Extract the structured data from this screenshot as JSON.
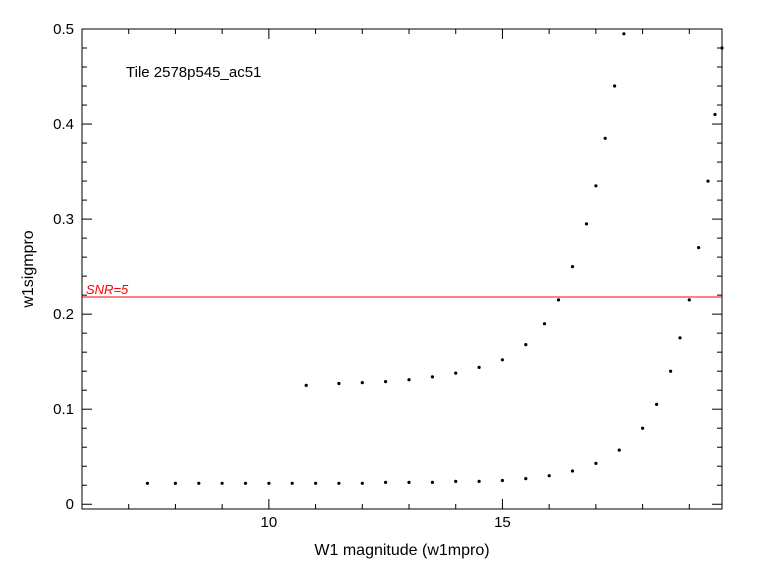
{
  "chart_data": {
    "type": "scatter",
    "title": "Tile 2578p545_ac51",
    "xlabel": "W1 magnitude (w1mpro)",
    "ylabel": "w1sigmpro",
    "xlim": [
      6.0,
      19.7
    ],
    "ylim": [
      -0.005,
      0.5
    ],
    "xticks_major": [
      10,
      15
    ],
    "xticks_minor_step": 1,
    "yticks_major": [
      0,
      0.1,
      0.2,
      0.3,
      0.4,
      0.5
    ],
    "ytick_labels": [
      "0",
      "0.1",
      "0.2",
      "0.3",
      "0.4",
      "0.5"
    ],
    "xtick_labels": [
      "10",
      "15"
    ],
    "yticks_minor_step": 0.02,
    "grid": false,
    "legend": "none",
    "series": [
      {
        "kind": "points",
        "color": "#000000",
        "description_of_locus": "primary sequence",
        "points": [
          [
            7.4,
            0.022
          ],
          [
            8.0,
            0.022
          ],
          [
            8.5,
            0.022
          ],
          [
            9.0,
            0.022
          ],
          [
            9.5,
            0.022
          ],
          [
            10.0,
            0.022
          ],
          [
            10.5,
            0.022
          ],
          [
            11.0,
            0.022
          ],
          [
            11.5,
            0.022
          ],
          [
            12.0,
            0.022
          ],
          [
            12.5,
            0.023
          ],
          [
            13.0,
            0.023
          ],
          [
            13.5,
            0.023
          ],
          [
            14.0,
            0.024
          ],
          [
            14.5,
            0.024
          ],
          [
            15.0,
            0.025
          ],
          [
            15.5,
            0.027
          ],
          [
            16.0,
            0.03
          ],
          [
            16.5,
            0.035
          ],
          [
            17.0,
            0.043
          ],
          [
            17.5,
            0.057
          ],
          [
            18.0,
            0.08
          ],
          [
            18.3,
            0.105
          ],
          [
            18.6,
            0.14
          ],
          [
            18.8,
            0.175
          ],
          [
            19.0,
            0.215
          ],
          [
            19.2,
            0.27
          ],
          [
            19.4,
            0.34
          ],
          [
            19.55,
            0.41
          ],
          [
            19.7,
            0.48
          ]
        ]
      },
      {
        "kind": "points",
        "color": "#000000",
        "description_of_locus": "secondary sequence",
        "points": [
          [
            10.8,
            0.125
          ],
          [
            11.5,
            0.127
          ],
          [
            12.0,
            0.128
          ],
          [
            12.5,
            0.129
          ],
          [
            13.0,
            0.131
          ],
          [
            13.5,
            0.134
          ],
          [
            14.0,
            0.138
          ],
          [
            14.5,
            0.144
          ],
          [
            15.0,
            0.152
          ],
          [
            15.5,
            0.168
          ],
          [
            15.9,
            0.19
          ],
          [
            16.2,
            0.215
          ],
          [
            16.5,
            0.25
          ],
          [
            16.8,
            0.295
          ],
          [
            17.0,
            0.335
          ],
          [
            17.2,
            0.385
          ],
          [
            17.4,
            0.44
          ],
          [
            17.6,
            0.495
          ]
        ]
      }
    ],
    "reference_lines": [
      {
        "orientation": "horizontal",
        "y": 0.218,
        "label": "SNR=5",
        "color": "#ff0000"
      }
    ]
  },
  "colors": {
    "axis": "#000000",
    "reference_line": "#ff0000",
    "points": "#000000",
    "background": "#ffffff"
  }
}
